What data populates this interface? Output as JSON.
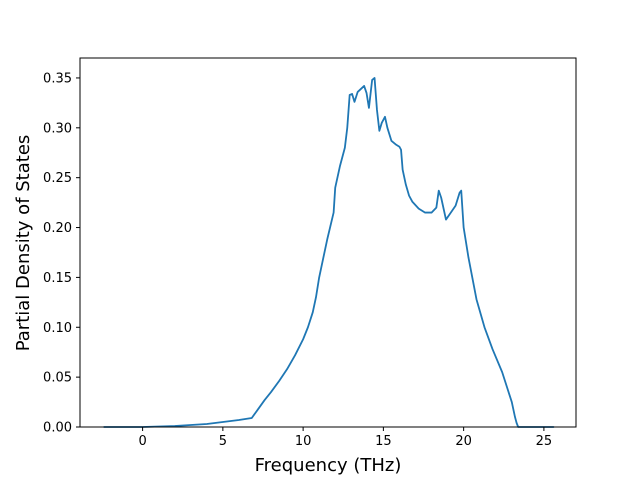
{
  "chart_data": {
    "type": "line",
    "title": "",
    "xlabel": "Frequency (THz)",
    "ylabel": "Partial Density of States",
    "xlim": [
      -3.9,
      27.0
    ],
    "ylim": [
      0.0,
      0.37
    ],
    "xticks": [
      0,
      5,
      10,
      15,
      20,
      25
    ],
    "yticks": [
      0.0,
      0.05,
      0.1,
      0.15,
      0.2,
      0.25,
      0.3,
      0.35
    ],
    "xtick_labels": [
      "0",
      "5",
      "10",
      "15",
      "20",
      "25"
    ],
    "ytick_labels": [
      "0.00",
      "0.05",
      "0.10",
      "0.15",
      "0.20",
      "0.25",
      "0.30",
      "0.35"
    ],
    "grid": false,
    "legend": "none",
    "series": [
      {
        "color": "#1f77b4",
        "x": [
          -2.4,
          -1.0,
          0.0,
          1.0,
          2.0,
          3.0,
          4.0,
          5.0,
          6.0,
          6.8,
          7.2,
          7.6,
          8.0,
          8.5,
          9.0,
          9.5,
          10.0,
          10.3,
          10.6,
          10.8,
          11.0,
          11.5,
          11.9,
          12.0,
          12.3,
          12.6,
          12.75,
          12.9,
          13.05,
          13.2,
          13.4,
          13.6,
          13.8,
          13.95,
          14.1,
          14.3,
          14.45,
          14.6,
          14.75,
          14.9,
          15.1,
          15.25,
          15.5,
          15.8,
          16.0,
          16.1,
          16.2,
          16.4,
          16.6,
          16.8,
          17.2,
          17.6,
          18.0,
          18.3,
          18.45,
          18.6,
          18.9,
          19.2,
          19.5,
          19.75,
          19.85,
          20.0,
          20.3,
          20.8,
          21.3,
          21.8,
          22.4,
          22.7,
          23.0,
          23.2,
          23.3,
          23.4,
          24.0,
          25.6
        ],
        "y": [
          0.0,
          0.0,
          0.0,
          0.0005,
          0.001,
          0.002,
          0.003,
          0.005,
          0.007,
          0.009,
          0.018,
          0.027,
          0.035,
          0.046,
          0.058,
          0.072,
          0.088,
          0.1,
          0.115,
          0.13,
          0.15,
          0.188,
          0.215,
          0.24,
          0.262,
          0.28,
          0.3,
          0.333,
          0.334,
          0.326,
          0.336,
          0.339,
          0.342,
          0.335,
          0.32,
          0.348,
          0.35,
          0.318,
          0.297,
          0.305,
          0.311,
          0.3,
          0.287,
          0.283,
          0.281,
          0.278,
          0.258,
          0.243,
          0.232,
          0.226,
          0.219,
          0.215,
          0.215,
          0.22,
          0.237,
          0.23,
          0.208,
          0.215,
          0.222,
          0.235,
          0.237,
          0.2,
          0.17,
          0.128,
          0.1,
          0.078,
          0.055,
          0.04,
          0.025,
          0.01,
          0.004,
          0.0,
          0.0,
          0.0
        ]
      }
    ]
  }
}
